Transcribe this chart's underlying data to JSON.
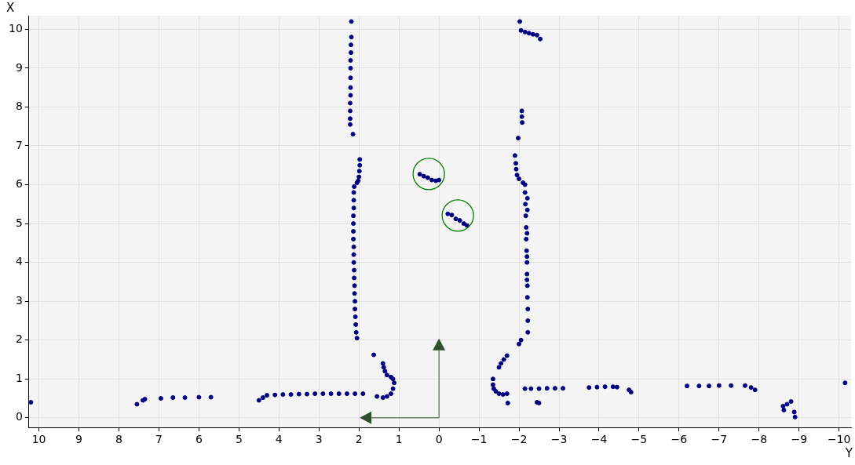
{
  "chart_data": {
    "type": "scatter",
    "xlabel": "Y",
    "ylabel": "X",
    "marker": "circle",
    "grid": true,
    "legend": false,
    "xlim": [
      10.25,
      -10.3
    ],
    "ylim": [
      -0.25,
      10.35
    ],
    "xticks": [
      10,
      9,
      8,
      7,
      6,
      5,
      4,
      3,
      2,
      1,
      0,
      {
        "value": -1,
        "label": "−1"
      },
      {
        "value": -2,
        "label": "−2"
      },
      {
        "value": -3,
        "label": "−3"
      },
      {
        "value": -4,
        "label": "−4"
      },
      {
        "value": -5,
        "label": "−5"
      },
      {
        "value": -6,
        "label": "−6"
      },
      {
        "value": -7,
        "label": "−7"
      },
      {
        "value": -8,
        "label": "−8"
      },
      {
        "value": -9,
        "label": "−9"
      },
      {
        "value": -10,
        "label": "−10"
      }
    ],
    "yticks": [
      0,
      1,
      2,
      3,
      4,
      5,
      6,
      7,
      8,
      9,
      10
    ],
    "series": [
      {
        "color": "#000080",
        "x": [
          2.19,
          2.19,
          2.2,
          2.2,
          2.21,
          2.21,
          2.21,
          2.21,
          2.21,
          2.22,
          2.22,
          2.22,
          2.22,
          2.15,
          1.98,
          1.98,
          1.99,
          2.0,
          2.02,
          2.05,
          2.12,
          2.13,
          2.13,
          2.13,
          2.14,
          2.14,
          2.14,
          2.14,
          2.13,
          2.13,
          2.13,
          2.12,
          2.12,
          2.11,
          2.11,
          2.1,
          2.1,
          2.09,
          2.08,
          2.07,
          2.05,
          -2.02,
          -2.05,
          -2.15,
          -2.25,
          -2.35,
          -2.45,
          -2.53,
          -2.07,
          -2.07,
          -2.08,
          -1.98,
          -1.9,
          -1.92,
          -1.93,
          -1.95,
          -2.0,
          -2.1,
          -2.15,
          -2.15,
          -2.16,
          -2.17,
          -2.18,
          -2.18,
          -2.19,
          -2.2,
          -2.2,
          -2.21,
          -2.21,
          -2.22,
          -2.22,
          -2.22,
          -2.21,
          -2.21,
          -2.2,
          -2.2,
          -2.2,
          -2.05,
          -2.0,
          10.2,
          7.55,
          7.4,
          7.35,
          6.95,
          6.65,
          6.35,
          6.0,
          5.7,
          4.5,
          4.4,
          4.3,
          4.1,
          3.9,
          3.7,
          3.5,
          3.3,
          3.1,
          2.9,
          2.7,
          2.5,
          2.3,
          2.1,
          1.9,
          1.55,
          1.4,
          1.3,
          1.2,
          1.15,
          1.12,
          1.15,
          1.2,
          1.3,
          1.63,
          1.4,
          1.38,
          1.35,
          -1.35,
          -1.35,
          -1.37,
          -1.42,
          -1.5,
          -1.6,
          -1.7,
          -1.72,
          -1.5,
          -1.55,
          -1.62,
          -1.7,
          -2.15,
          -2.3,
          -2.5,
          -2.7,
          -2.9,
          -3.1,
          -2.45,
          -2.5,
          -3.75,
          -3.95,
          -4.15,
          -4.35,
          -4.45,
          -4.75,
          -4.8,
          -6.2,
          -6.5,
          -6.75,
          -7.0,
          -7.3,
          -7.65,
          -7.8,
          -7.9,
          -8.6,
          -8.62,
          -8.7,
          -8.8,
          -8.88,
          -8.9,
          -10.15,
          0.48,
          0.38,
          0.28,
          0.18,
          0.08,
          0.0,
          -0.22,
          -0.32,
          -0.42,
          -0.52,
          -0.62,
          -0.7
        ],
        "values": [
          10.2,
          9.8,
          9.6,
          9.4,
          9.2,
          9.0,
          8.75,
          8.5,
          8.3,
          8.1,
          7.9,
          7.7,
          7.55,
          7.3,
          6.65,
          6.5,
          6.35,
          6.2,
          6.1,
          6.05,
          5.95,
          5.8,
          5.6,
          5.4,
          5.2,
          5.0,
          4.8,
          4.6,
          4.4,
          4.2,
          4.0,
          3.8,
          3.6,
          3.4,
          3.2,
          3.0,
          2.8,
          2.6,
          2.4,
          2.2,
          2.05,
          10.2,
          9.97,
          9.93,
          9.9,
          9.87,
          9.85,
          9.75,
          7.9,
          7.75,
          7.6,
          7.2,
          6.75,
          6.55,
          6.4,
          6.25,
          6.15,
          6.05,
          6.0,
          5.8,
          5.5,
          5.2,
          4.9,
          4.6,
          4.3,
          4.0,
          3.7,
          3.4,
          3.1,
          2.8,
          2.5,
          2.2,
          5.65,
          5.35,
          4.75,
          4.15,
          3.55,
          2.0,
          1.9,
          0.4,
          0.35,
          0.45,
          0.48,
          0.5,
          0.52,
          0.52,
          0.53,
          0.53,
          0.45,
          0.52,
          0.58,
          0.59,
          0.6,
          0.6,
          0.61,
          0.61,
          0.62,
          0.62,
          0.62,
          0.62,
          0.62,
          0.62,
          0.62,
          0.55,
          0.52,
          0.55,
          0.62,
          0.75,
          0.9,
          1.0,
          1.05,
          1.1,
          1.62,
          1.4,
          1.3,
          1.2,
          1.0,
          0.85,
          0.75,
          0.68,
          0.62,
          0.6,
          0.62,
          0.38,
          1.3,
          1.4,
          1.5,
          1.6,
          0.75,
          0.75,
          0.75,
          0.76,
          0.76,
          0.76,
          0.4,
          0.38,
          0.78,
          0.79,
          0.8,
          0.8,
          0.79,
          0.72,
          0.66,
          0.82,
          0.82,
          0.82,
          0.83,
          0.83,
          0.83,
          0.78,
          0.72,
          0.3,
          0.2,
          0.35,
          0.42,
          0.15,
          0.02,
          0.9,
          6.27,
          6.22,
          6.18,
          6.12,
          6.1,
          6.12,
          5.25,
          5.22,
          5.12,
          5.08,
          5.0,
          4.95
        ]
      }
    ]
  }
}
